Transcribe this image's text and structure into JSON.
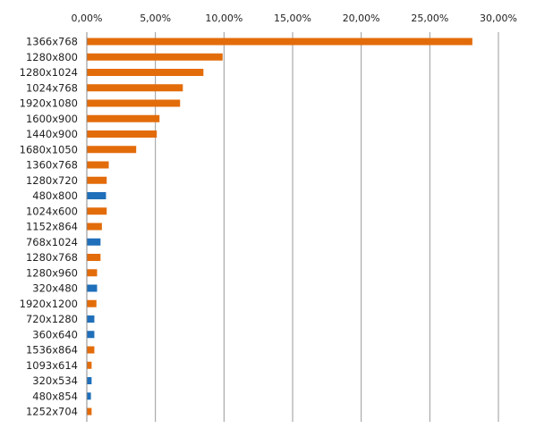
{
  "chart_data": {
    "type": "bar",
    "orientation": "horizontal",
    "categories": [
      "1366x768",
      "1280x800",
      "1280x1024",
      "1024x768",
      "1920x1080",
      "1600x900",
      "1440x900",
      "1680x1050",
      "1360x768",
      "1280x720",
      "480x800",
      "1024x600",
      "1152x864",
      "768x1024",
      "1280x768",
      "1280x960",
      "320x480",
      "1920x1200",
      "720x1280",
      "360x640",
      "1536x864",
      "1093x614",
      "320x534",
      "480x854",
      "1252x704"
    ],
    "values": [
      28.1,
      9.9,
      8.5,
      7.0,
      6.8,
      5.3,
      5.1,
      3.6,
      1.6,
      1.45,
      1.4,
      1.45,
      1.1,
      1.0,
      1.0,
      0.75,
      0.75,
      0.7,
      0.55,
      0.55,
      0.55,
      0.35,
      0.35,
      0.3,
      0.35
    ],
    "colors": [
      "#e36c0a",
      "#e36c0a",
      "#e36c0a",
      "#e36c0a",
      "#e36c0a",
      "#e36c0a",
      "#e36c0a",
      "#e36c0a",
      "#e36c0a",
      "#e36c0a",
      "#1f6fba",
      "#e36c0a",
      "#e36c0a",
      "#1f6fba",
      "#e36c0a",
      "#e36c0a",
      "#1f6fba",
      "#e36c0a",
      "#1f6fba",
      "#1f6fba",
      "#e36c0a",
      "#e36c0a",
      "#1f6fba",
      "#1f6fba",
      "#e36c0a"
    ],
    "xticks": [
      0,
      5,
      10,
      15,
      20,
      25,
      30
    ],
    "xtick_labels": [
      "0,00%",
      "5,00%",
      "10,00%",
      "15,00%",
      "20,00%",
      "25,00%",
      "30,00%"
    ],
    "xlim": [
      0,
      30
    ],
    "xaxis_position": "top",
    "grid": true,
    "title": "",
    "xlabel": "",
    "ylabel": ""
  }
}
